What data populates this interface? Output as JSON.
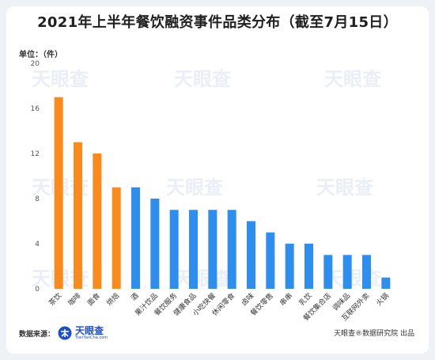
{
  "header": {
    "title": "2021年上半年餐饮融资事件品类分布（截至7月15日）",
    "unit_label": "单位：（件）"
  },
  "footer": {
    "source_label": "数据来源：",
    "logo_cn": "天眼查",
    "logo_en": "TianYanCha.com",
    "credit": "天眼查®数据研究院 出品"
  },
  "watermark": {
    "text": "天眼查"
  },
  "colors": {
    "highlight": "#fb8a1c",
    "normal": "#2e8ef0",
    "grid": "#e6e6e6",
    "axis_text": "#555555"
  },
  "chart_data": {
    "type": "bar",
    "categories": [
      "茶饮",
      "咖啡",
      "面食",
      "烘焙",
      "酒",
      "果汁饮品",
      "餐饮服务",
      "健康食品",
      "小吃快餐",
      "休闲零食",
      "卤味",
      "餐饮零售",
      "串串",
      "乳饮",
      "餐饮集合店",
      "调味品",
      "互联网外卖",
      "火锅"
    ],
    "values": [
      17,
      13,
      12,
      9,
      9,
      8,
      7,
      7,
      7,
      7,
      6,
      5,
      4,
      4,
      3,
      3,
      3,
      1
    ],
    "highlight_count": 4,
    "ylim": [
      0,
      20
    ],
    "yticks": [
      0,
      4,
      8,
      12,
      16,
      20
    ],
    "grid": false,
    "title": "2021年上半年餐饮融资事件品类分布（截至7月15日）",
    "ylabel": "单位：（件）",
    "xlabel": ""
  }
}
